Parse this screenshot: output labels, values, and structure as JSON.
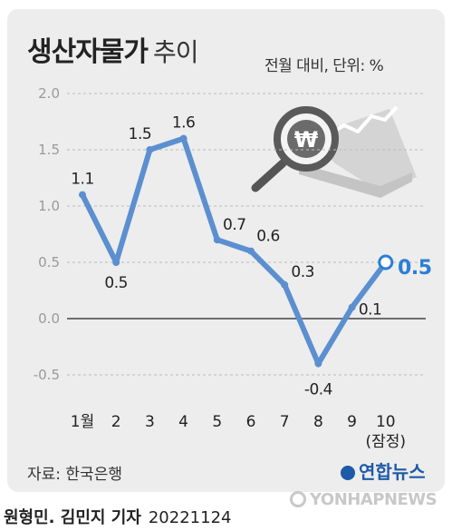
{
  "header": {
    "title_main": "생산자물가",
    "title_sub": "추이",
    "unit": "전월 대비, 단위: %"
  },
  "chart_data": {
    "type": "line",
    "categories": [
      "1월",
      "2",
      "3",
      "4",
      "5",
      "6",
      "7",
      "8",
      "9",
      "10"
    ],
    "category_notes": [
      "",
      "",
      "",
      "",
      "",
      "",
      "",
      "",
      "",
      "(잠정)"
    ],
    "series": [
      {
        "values": [
          1.1,
          0.5,
          1.5,
          1.6,
          0.7,
          0.6,
          0.3,
          -0.4,
          0.1,
          0.5
        ]
      }
    ],
    "data_labels": [
      "1.1",
      "0.5",
      "1.5",
      "1.6",
      "0.7",
      "0.6",
      "0.3",
      "-0.4",
      "0.1",
      "0.5"
    ],
    "y_ticks": [
      2.0,
      1.5,
      1.0,
      0.5,
      0.0,
      -0.5
    ],
    "y_tick_labels": [
      "2.0",
      "1.5",
      "1.0",
      "0.5",
      "0.0",
      "-0.5"
    ],
    "ylim": [
      -0.5,
      2.0
    ],
    "grid": "horizontal dashed",
    "highlight_last_point": true,
    "line_color": "#5b8fd0",
    "highlight_color": "#2a7fd4",
    "label_color": "#222222",
    "illustration": "magnifying-glass-over-won-coin-chart"
  },
  "footer": {
    "source": "자료: 한국은행",
    "brand": "연합뉴스",
    "author": "원형민. 김민지 기자",
    "date": "20221124",
    "watermark": "YONHAPNEWS"
  }
}
